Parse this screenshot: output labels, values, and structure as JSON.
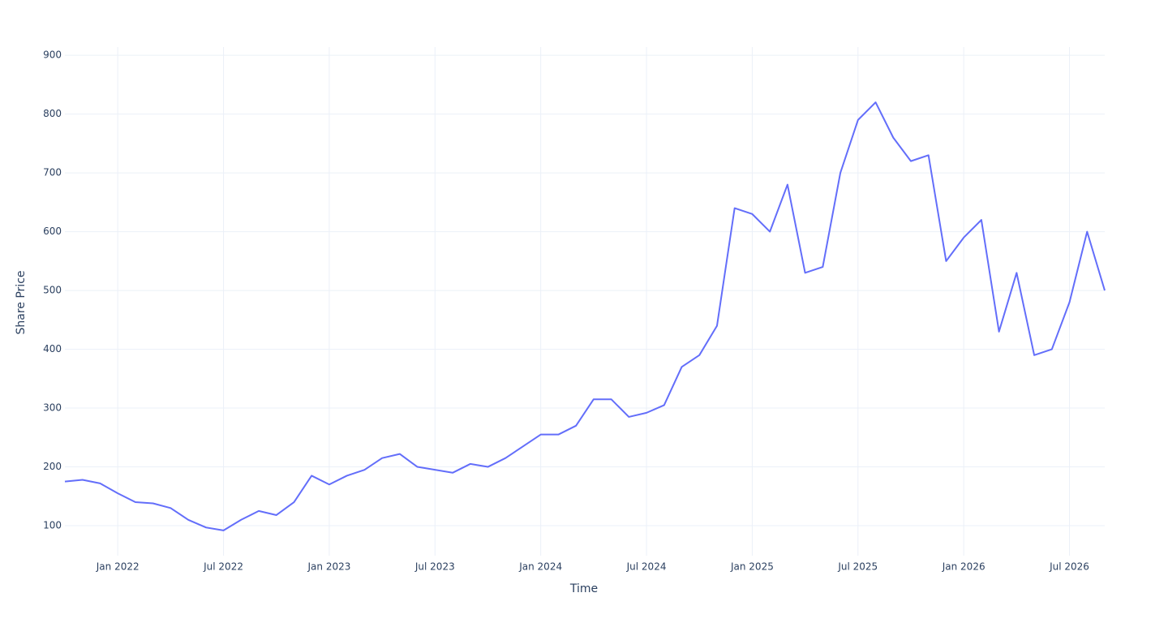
{
  "chart_data": {
    "type": "line",
    "x_label": "Time",
    "y_label": "Share Price",
    "x": [
      "2021-10",
      "2021-11",
      "2021-12",
      "2022-01",
      "2022-02",
      "2022-03",
      "2022-04",
      "2022-05",
      "2022-06",
      "2022-07",
      "2022-08",
      "2022-09",
      "2022-10",
      "2022-11",
      "2022-12",
      "2023-01",
      "2023-02",
      "2023-03",
      "2023-04",
      "2023-05",
      "2023-06",
      "2023-07",
      "2023-08",
      "2023-09",
      "2023-10",
      "2023-11",
      "2023-12",
      "2024-01",
      "2024-02",
      "2024-03",
      "2024-04",
      "2024-05",
      "2024-06",
      "2024-07",
      "2024-08",
      "2024-09",
      "2024-10",
      "2024-11",
      "2024-12",
      "2025-01",
      "2025-02",
      "2025-03",
      "2025-04",
      "2025-05",
      "2025-06",
      "2025-07",
      "2025-08",
      "2025-09",
      "2025-10",
      "2025-11",
      "2025-12",
      "2026-01",
      "2026-02",
      "2026-03",
      "2026-04",
      "2026-05",
      "2026-06",
      "2026-07",
      "2026-08",
      "2026-09"
    ],
    "series": [
      {
        "name": "Share Price",
        "color": "#636efa",
        "values": [
          175,
          178,
          172,
          155,
          140,
          138,
          130,
          110,
          97,
          92,
          110,
          125,
          118,
          140,
          185,
          170,
          185,
          195,
          215,
          222,
          200,
          195,
          190,
          205,
          200,
          215,
          235,
          255,
          255,
          270,
          315,
          315,
          285,
          292,
          305,
          370,
          390,
          440,
          640,
          630,
          600,
          680,
          530,
          540,
          700,
          790,
          820,
          760,
          720,
          730,
          550,
          590,
          620,
          430,
          530,
          390,
          400,
          480,
          600,
          500
        ]
      }
    ],
    "xlim": [
      "2021-10",
      "2026-09"
    ],
    "xticks": [
      {
        "value": "2022-01",
        "label": "Jan 2022"
      },
      {
        "value": "2022-07",
        "label": "Jul 2022"
      },
      {
        "value": "2023-01",
        "label": "Jan 2023"
      },
      {
        "value": "2023-07",
        "label": "Jul 2023"
      },
      {
        "value": "2024-01",
        "label": "Jan 2024"
      },
      {
        "value": "2024-07",
        "label": "Jul 2024"
      },
      {
        "value": "2025-01",
        "label": "Jan 2025"
      },
      {
        "value": "2025-07",
        "label": "Jul 2025"
      },
      {
        "value": "2026-01",
        "label": "Jan 2026"
      },
      {
        "value": "2026-07",
        "label": "Jul 2026"
      }
    ],
    "ylim": [
      49,
      914
    ],
    "yticks": [
      100,
      200,
      300,
      400,
      500,
      600,
      700,
      800,
      900
    ],
    "grid": true
  }
}
